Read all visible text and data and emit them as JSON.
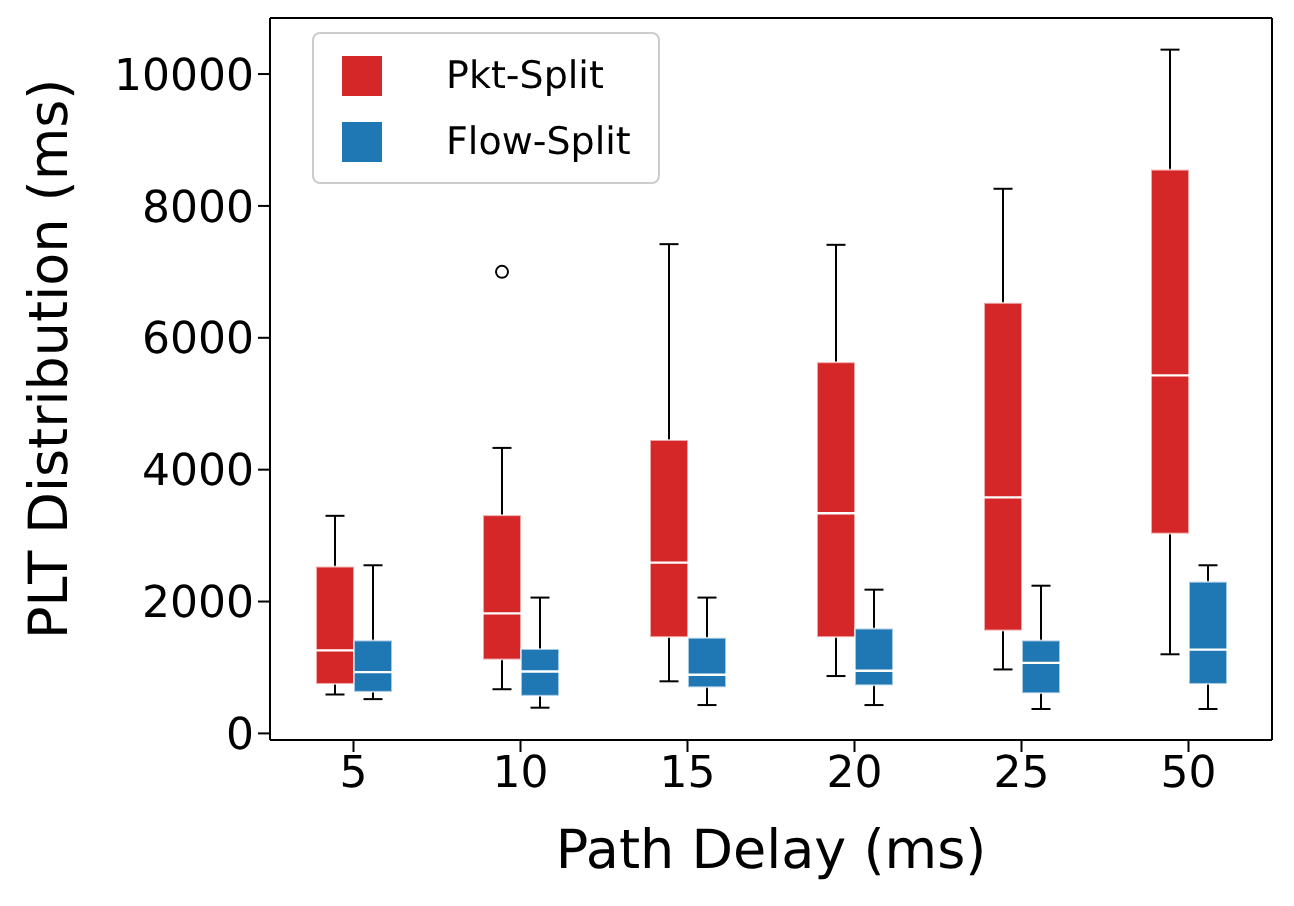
{
  "chart_data": {
    "type": "box",
    "xlabel": "Path Delay (ms)",
    "ylabel": "PLT Distribution (ms)",
    "categories": [
      "5",
      "10",
      "15",
      "20",
      "25",
      "50"
    ],
    "ylim": [
      -100,
      10850
    ],
    "yticks": [
      0,
      2000,
      4000,
      6000,
      8000,
      10000
    ],
    "grid": false,
    "legend": "top left",
    "series": [
      {
        "name": "Pkt-Split",
        "color": "#d62728",
        "boxes": [
          {
            "low": 590,
            "q1": 750,
            "median": 1260,
            "q3": 2530,
            "high": 3300
          },
          {
            "low": 670,
            "q1": 1120,
            "median": 1820,
            "q3": 3310,
            "high": 4330,
            "outliers": [
              7000
            ]
          },
          {
            "low": 790,
            "q1": 1460,
            "median": 2590,
            "q3": 4450,
            "high": 7420
          },
          {
            "low": 870,
            "q1": 1460,
            "median": 3340,
            "q3": 5630,
            "high": 7410
          },
          {
            "low": 970,
            "q1": 1560,
            "median": 3580,
            "q3": 6530,
            "high": 8260
          },
          {
            "low": 1200,
            "q1": 3030,
            "median": 5430,
            "q3": 8550,
            "high": 10370
          }
        ]
      },
      {
        "name": "Flow-Split",
        "color": "#1f77b4",
        "boxes": [
          {
            "low": 520,
            "q1": 630,
            "median": 930,
            "q3": 1410,
            "high": 2550
          },
          {
            "low": 390,
            "q1": 570,
            "median": 940,
            "q3": 1280,
            "high": 2060
          },
          {
            "low": 430,
            "q1": 700,
            "median": 890,
            "q3": 1450,
            "high": 2060
          },
          {
            "low": 430,
            "q1": 730,
            "median": 950,
            "q3": 1590,
            "high": 2180
          },
          {
            "low": 370,
            "q1": 610,
            "median": 1070,
            "q3": 1410,
            "high": 2240
          },
          {
            "low": 370,
            "q1": 750,
            "median": 1270,
            "q3": 2300,
            "high": 2550
          }
        ]
      }
    ]
  }
}
